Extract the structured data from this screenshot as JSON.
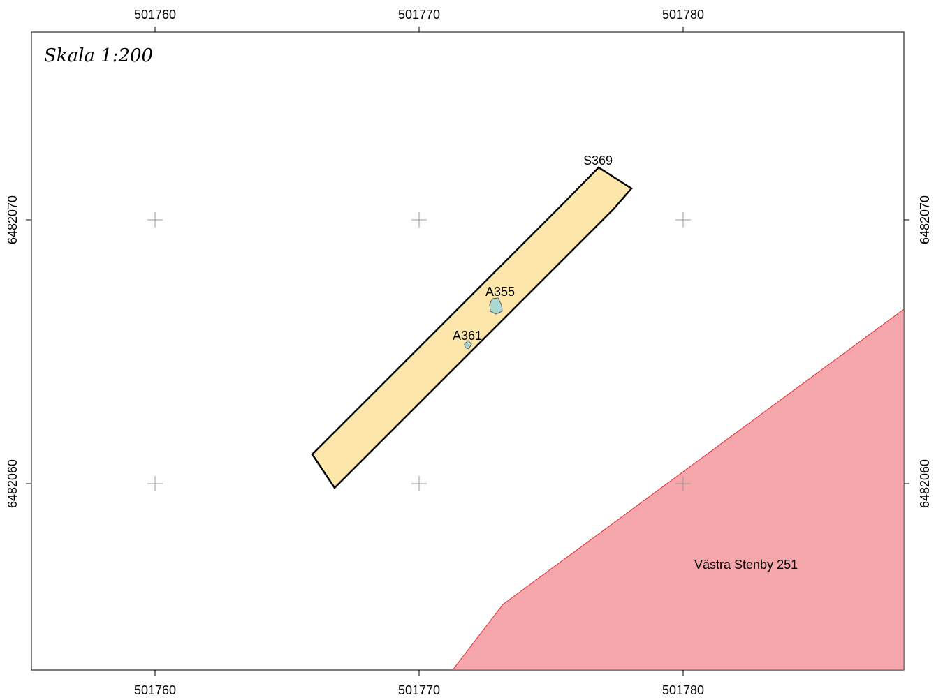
{
  "scale": "Skala 1:200",
  "x_ticks": [
    {
      "value": 501760,
      "label": "501760"
    },
    {
      "value": 501770,
      "label": "501770"
    },
    {
      "value": 501780,
      "label": "501780"
    }
  ],
  "y_ticks": [
    {
      "value": 6482070,
      "label": "6482070"
    },
    {
      "value": 6482060,
      "label": "6482060"
    }
  ],
  "features": {
    "trench": {
      "label": "S369",
      "fill": "#fde6a9",
      "stroke": "#000000"
    },
    "feature_a355": {
      "label": "A355",
      "fill": "#a8d8cf",
      "stroke": "#555555"
    },
    "feature_a361": {
      "label": "A361",
      "fill": "#a8d8cf",
      "stroke": "#555555"
    },
    "property": {
      "label": "Västra Stenby 251",
      "fill": "#f6a7ab",
      "stroke": "#e0282e"
    }
  },
  "colors": {
    "frame": "#000000",
    "grid_cross": "#999999"
  }
}
